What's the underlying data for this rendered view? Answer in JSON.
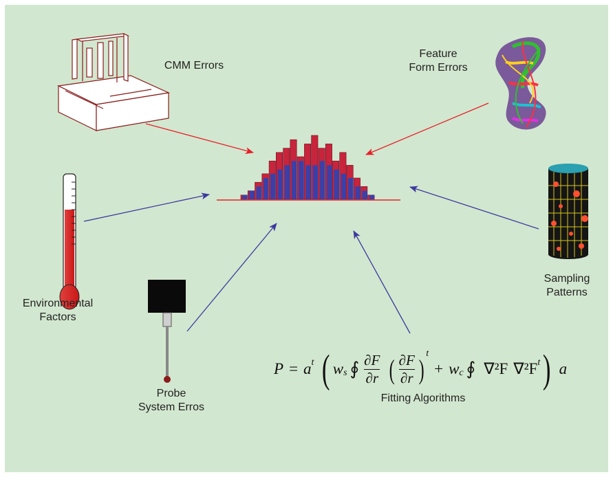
{
  "labels": {
    "cmm_errors": "CMM Errors",
    "feature_form_line1": "Feature",
    "feature_form_line2": "Form Errors",
    "environmental_line1": "Environmental",
    "environmental_line2": "Factors",
    "sampling_line1": "Sampling",
    "sampling_line2": "Patterns",
    "probe_line1": "Probe",
    "probe_line2": "System Erros",
    "fitting": "Fitting Algorithms"
  },
  "formula": {
    "lhs": "P",
    "eq": "=",
    "a": "a",
    "t": "t",
    "w": "w",
    "sub_s": "s",
    "sub_c": "c",
    "oint": "∮",
    "dF": "∂F",
    "dr": "∂r",
    "plus": "+",
    "laplace1": "∇²F",
    "laplace2": "∇²F",
    "t2": "t",
    "t3": "t",
    "a_end": "a",
    "lparen": "(",
    "rparen": ")"
  },
  "histogram": {
    "blue_values": [
      1,
      2,
      3,
      5,
      6,
      7,
      8,
      9,
      9,
      8,
      8,
      9,
      8,
      7,
      6,
      5,
      3,
      2,
      1
    ],
    "red_values": [
      1,
      2,
      4,
      6,
      9,
      11,
      12,
      14,
      10,
      13,
      15,
      12,
      13,
      9,
      11,
      8,
      5,
      3,
      1
    ]
  },
  "colors": {
    "background": "#d2e7cf",
    "blue_bars": "#3b3fa8",
    "red_bars": "#c8243c",
    "red_arrow": "#e8202a",
    "blue_arrow": "#3d3aa0"
  }
}
